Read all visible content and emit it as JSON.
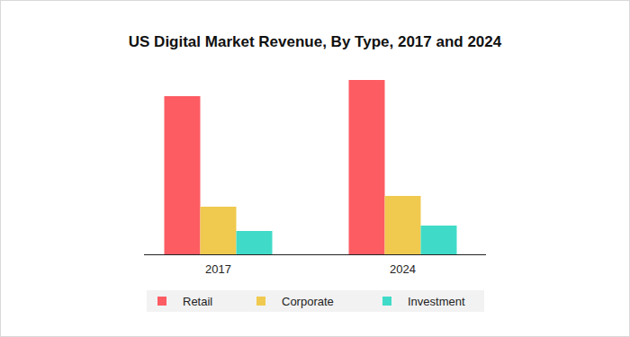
{
  "chart_data": {
    "type": "bar",
    "title": "US Digital Market Revenue, By Type, 2017 and 2024",
    "categories": [
      "2017",
      "2024"
    ],
    "series": [
      {
        "name": "Retail",
        "color": "#fd5c63",
        "values": [
          176,
          194
        ]
      },
      {
        "name": "Corporate",
        "color": "#f0c94f",
        "values": [
          53,
          65
        ]
      },
      {
        "name": "Investment",
        "color": "#40dbc8",
        "values": [
          26,
          32
        ]
      }
    ],
    "ylim": [
      0,
      200
    ],
    "grid": false,
    "legend": "bottom",
    "tick_labels": "x"
  }
}
